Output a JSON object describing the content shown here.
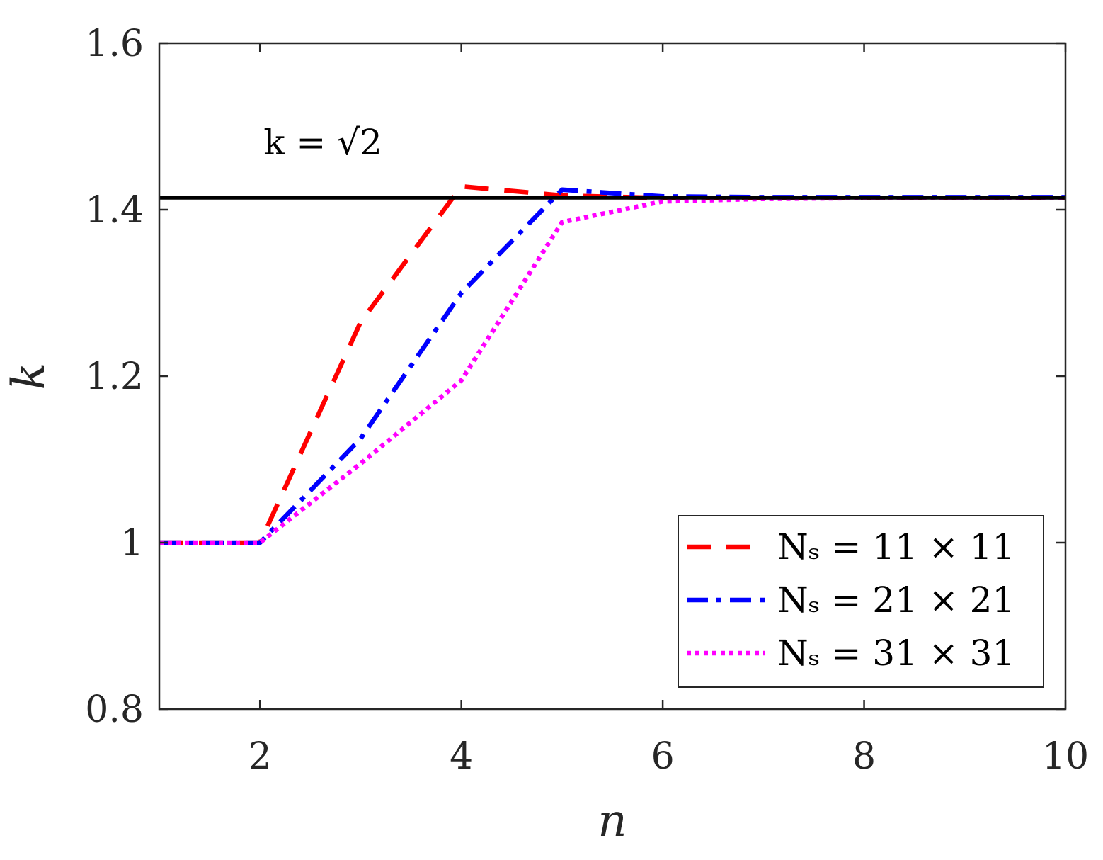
{
  "chart_data": {
    "type": "line",
    "xlabel": "n",
    "ylabel": "k",
    "xlim": [
      1,
      10
    ],
    "ylim": [
      0.8,
      1.6
    ],
    "xticks": [
      2,
      4,
      6,
      8,
      10
    ],
    "yticks": [
      0.8,
      1.0,
      1.2,
      1.4,
      1.6
    ],
    "xtick_labels": [
      "2",
      "4",
      "6",
      "8",
      "10"
    ],
    "ytick_labels": [
      "0.8",
      "1",
      "1.2",
      "1.4",
      "1.6"
    ],
    "grid": false,
    "legend_position": "bottom-right",
    "reference_line": {
      "y": 1.41421356,
      "color": "#000000"
    },
    "annotation": {
      "text": "k = √2",
      "x": 2.0,
      "y": 1.48
    },
    "series": [
      {
        "name": "N_s = 11 × 11",
        "label": "Nₛ = 11 × 11",
        "color": "#ff0000",
        "style": "dashed",
        "x": [
          1,
          2,
          3,
          4,
          5,
          6,
          7,
          8,
          9,
          10
        ],
        "y": [
          1.0,
          1.0,
          1.265,
          1.428,
          1.417,
          1.414,
          1.414,
          1.414,
          1.414,
          1.414
        ]
      },
      {
        "name": "N_s = 21 × 21",
        "label": "Nₛ = 21 × 21",
        "color": "#0000ff",
        "style": "dashdot",
        "x": [
          1,
          2,
          3,
          4,
          5,
          6,
          7,
          8,
          9,
          10
        ],
        "y": [
          1.0,
          1.0,
          1.125,
          1.3,
          1.424,
          1.416,
          1.415,
          1.415,
          1.415,
          1.415
        ]
      },
      {
        "name": "N_s = 31 × 31",
        "label": "Nₛ = 31 × 31",
        "color": "#ff00ff",
        "style": "dotted",
        "x": [
          1,
          2,
          3,
          4,
          5,
          6,
          7,
          8,
          9,
          10
        ],
        "y": [
          1.0,
          1.0,
          1.095,
          1.195,
          1.385,
          1.41,
          1.413,
          1.414,
          1.414,
          1.414
        ]
      }
    ]
  }
}
